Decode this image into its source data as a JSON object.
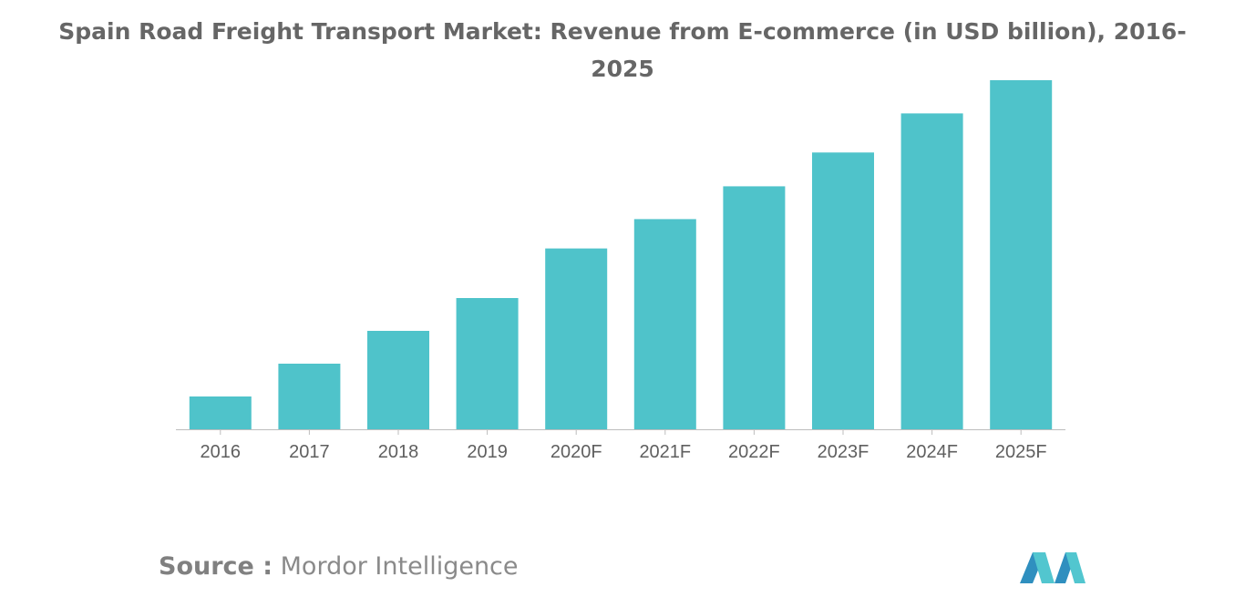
{
  "title_lines": [
    "Spain Road Freight Transport Market: Revenue from E-commerce (in USD billion), 2016-",
    "2025"
  ],
  "source": {
    "label": "Source :",
    "value": "Mordor Intelligence"
  },
  "colors": {
    "bar": "#4fc3ca",
    "axis": "#bdbdbd",
    "text": "#666666"
  },
  "chart_data": {
    "type": "bar",
    "title": "Spain Road Freight Transport Market: Revenue from E-commerce (in USD billion), 2016-2025",
    "categories": [
      "2016",
      "2017",
      "2018",
      "2019",
      "2020F",
      "2021F",
      "2022F",
      "2023F",
      "2024F",
      "2025F"
    ],
    "values": [
      9.4,
      18.8,
      28.2,
      37.6,
      51.8,
      60.2,
      69.6,
      79.3,
      90.5,
      100
    ],
    "xlabel": "",
    "ylabel": "",
    "ylim": [
      0,
      100
    ],
    "grid": false,
    "legend": "none"
  }
}
